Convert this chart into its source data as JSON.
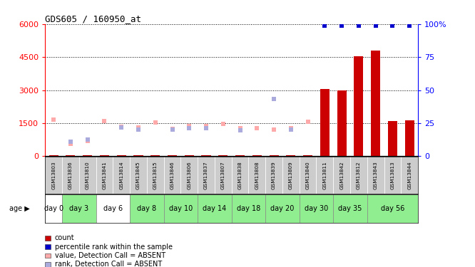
{
  "title": "GDS605 / 160950_at",
  "samples": [
    "GSM13803",
    "GSM13836",
    "GSM13810",
    "GSM13841",
    "GSM13814",
    "GSM13845",
    "GSM13815",
    "GSM13846",
    "GSM13806",
    "GSM13837",
    "GSM13807",
    "GSM13838",
    "GSM13808",
    "GSM13839",
    "GSM13809",
    "GSM13840",
    "GSM13811",
    "GSM13842",
    "GSM13812",
    "GSM13843",
    "GSM13813",
    "GSM13844"
  ],
  "groups": [
    {
      "label": "day 0",
      "start": 0,
      "end": 1,
      "color": "#ffffff"
    },
    {
      "label": "day 3",
      "start": 1,
      "end": 3,
      "color": "#90ee90"
    },
    {
      "label": "day 6",
      "start": 3,
      "end": 5,
      "color": "#ffffff"
    },
    {
      "label": "day 8",
      "start": 5,
      "end": 7,
      "color": "#90ee90"
    },
    {
      "label": "day 10",
      "start": 7,
      "end": 9,
      "color": "#90ee90"
    },
    {
      "label": "day 14",
      "start": 9,
      "end": 11,
      "color": "#90ee90"
    },
    {
      "label": "day 18",
      "start": 11,
      "end": 13,
      "color": "#90ee90"
    },
    {
      "label": "day 20",
      "start": 13,
      "end": 15,
      "color": "#90ee90"
    },
    {
      "label": "day 30",
      "start": 15,
      "end": 17,
      "color": "#90ee90"
    },
    {
      "label": "day 35",
      "start": 17,
      "end": 19,
      "color": "#90ee90"
    },
    {
      "label": "day 56",
      "start": 19,
      "end": 22,
      "color": "#90ee90"
    }
  ],
  "count_values": [
    40,
    40,
    40,
    40,
    40,
    40,
    40,
    40,
    40,
    40,
    40,
    40,
    40,
    40,
    40,
    40,
    3060,
    2980,
    4540,
    4780,
    1600,
    1630
  ],
  "count_absent": [
    true,
    true,
    true,
    true,
    true,
    true,
    true,
    true,
    true,
    true,
    true,
    true,
    true,
    true,
    true,
    true,
    false,
    false,
    false,
    false,
    false,
    false
  ],
  "rank_pct": [
    null,
    null,
    null,
    null,
    null,
    null,
    null,
    null,
    null,
    null,
    null,
    null,
    null,
    null,
    null,
    null,
    99,
    99,
    99,
    99,
    99,
    99
  ],
  "absent_value": [
    1650,
    550,
    700,
    1600,
    1350,
    1300,
    1520,
    1250,
    1380,
    1380,
    1480,
    1280,
    1280,
    1200,
    1280,
    1550,
    null,
    null,
    null,
    null,
    null,
    null
  ],
  "absent_rank": [
    null,
    650,
    750,
    null,
    1300,
    1200,
    null,
    1200,
    1280,
    1280,
    null,
    1180,
    null,
    null,
    1200,
    null,
    null,
    null,
    null,
    null,
    null,
    null
  ],
  "absent_rank2": [
    null,
    null,
    null,
    null,
    null,
    null,
    null,
    null,
    null,
    null,
    null,
    null,
    null,
    2600,
    null,
    null,
    null,
    null,
    null,
    null,
    null,
    null
  ],
  "ylim_left": [
    0,
    6000
  ],
  "ylim_right": [
    0,
    100
  ],
  "yticks_left": [
    0,
    1500,
    3000,
    4500,
    6000
  ],
  "yticks_right": [
    0,
    25,
    50,
    75,
    100
  ],
  "bg_color": "#ffffff",
  "plot_bg": "#ffffff",
  "bar_color": "#cc0000",
  "rank_color": "#0000cc",
  "absent_val_color": "#ffaaaa",
  "absent_rank_color": "#aaaadd",
  "count_label": "count",
  "rank_label": "percentile rank within the sample",
  "absent_val_label": "value, Detection Call = ABSENT",
  "absent_rank_label": "rank, Detection Call = ABSENT"
}
